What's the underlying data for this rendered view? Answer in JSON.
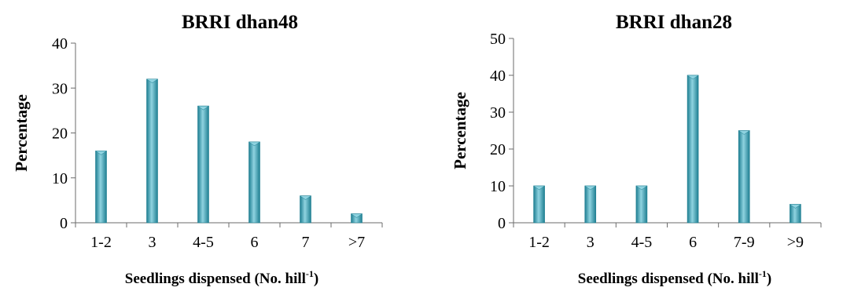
{
  "bar_colors": {
    "light": "#8fd3e0",
    "mid": "#4aaebf",
    "dark": "#1f7f92"
  },
  "chart_data": [
    {
      "type": "bar",
      "title": "BRRI dhan48",
      "ylabel": "Percentage",
      "xlabel": {
        "main": "Seedlings dispensed (No. hill",
        "sup": "-1",
        "end": ")"
      },
      "categories": [
        "1-2",
        "3",
        "4-5",
        "6",
        "7",
        ">7"
      ],
      "values": [
        16,
        32,
        26,
        18,
        6,
        2
      ],
      "ylim": [
        0,
        40
      ],
      "yticks": [
        0,
        10,
        20,
        30,
        40
      ],
      "grid": false,
      "legend": "none"
    },
    {
      "type": "bar",
      "title": "BRRI dhan28",
      "ylabel": "Percentage",
      "xlabel": {
        "main": "Seedlings dispensed (No. hill",
        "sup": "-1",
        "end": ")"
      },
      "categories": [
        "1-2",
        "3",
        "4-5",
        "6",
        "7-9",
        ">9"
      ],
      "values": [
        10,
        10,
        10,
        40,
        25,
        5
      ],
      "ylim": [
        0,
        50
      ],
      "yticks": [
        0,
        10,
        20,
        30,
        40,
        50
      ],
      "grid": false,
      "legend": "none"
    }
  ]
}
